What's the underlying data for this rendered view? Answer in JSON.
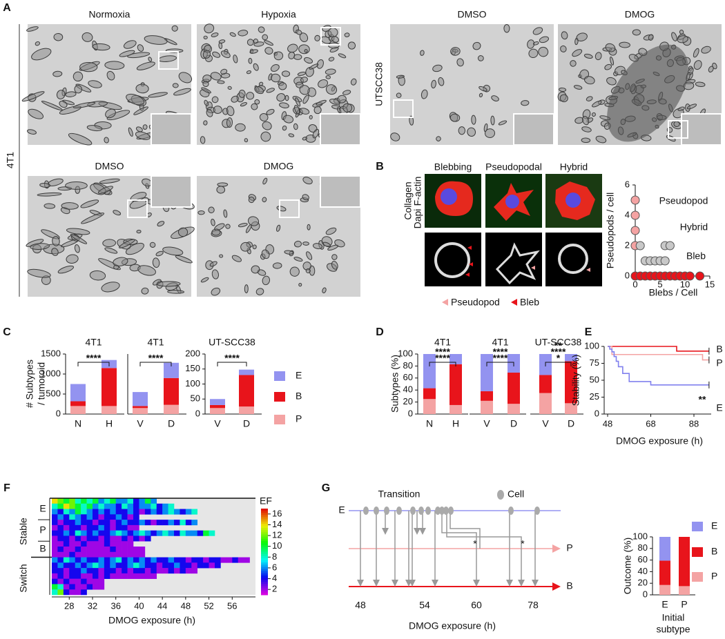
{
  "panel_labels": [
    "A",
    "B",
    "C",
    "D",
    "E",
    "F",
    "G"
  ],
  "panel_a": {
    "titles": [
      "Normoxia",
      "Hypoxia",
      "DMSO",
      "DMOG",
      "DMSO",
      "DMOG"
    ],
    "row_labels": [
      "4T1",
      "UTSCC38"
    ]
  },
  "panel_b": {
    "channel_labels": [
      "Collagen",
      "Dapi",
      "F-actin"
    ],
    "column_titles": [
      "Blebbing",
      "Pseudopodal",
      "Hybrid"
    ],
    "legend": [
      "Pseudopod",
      "Bleb"
    ]
  },
  "panel_g": {
    "title": "Transition",
    "legend": "Cell",
    "lanes": [
      "E",
      "P",
      "B"
    ],
    "xtick_labels": [
      "48",
      "54",
      "60",
      "78"
    ],
    "xlabel": "DMOG exposure (h)",
    "stars": [
      "*",
      "*"
    ]
  },
  "chart_data": [
    {
      "type": "scatter",
      "xlabel": "Blebs / Cell",
      "ylabel": "Pseudopods / cell",
      "xlim": [
        0,
        15
      ],
      "ylim": [
        0,
        6
      ],
      "xticks": [
        0,
        5,
        10,
        15
      ],
      "yticks": [
        0,
        2,
        4,
        6
      ],
      "series": [
        {
          "name": "Pseudopod",
          "color": "#f4a3a3",
          "x": [
            0,
            0,
            0,
            0
          ],
          "values": [
            2,
            3,
            4,
            5
          ]
        },
        {
          "name": "Hybrid",
          "color": "#c8c8c8",
          "x": [
            1,
            2,
            3,
            4,
            5,
            6,
            6,
            7
          ],
          "values": [
            2,
            1,
            1,
            1,
            1,
            1,
            2,
            2
          ]
        },
        {
          "name": "Bleb",
          "color": "#e8141b",
          "x": [
            0,
            1,
            2,
            3,
            4,
            5,
            6,
            7,
            8,
            9,
            10,
            11,
            13
          ],
          "values": [
            0,
            0,
            0,
            0,
            0,
            0,
            0,
            0,
            0,
            0,
            0,
            0,
            0
          ]
        }
      ]
    },
    {
      "type": "stacked_bar",
      "title": "4T1",
      "ylabel": [
        "# Subtypes",
        "/ tumoroid"
      ],
      "categories": [
        "N",
        "H"
      ],
      "ylim": [
        0,
        1500
      ],
      "yticks": [
        0,
        500,
        1000,
        1500
      ],
      "series": [
        {
          "name": "E",
          "color": "#9393f0",
          "values": [
            430,
            200
          ]
        },
        {
          "name": "B",
          "color": "#e8141b",
          "values": [
            120,
            950
          ]
        },
        {
          "name": "P",
          "color": "#f4a3a3",
          "values": [
            200,
            200
          ]
        }
      ],
      "significance": [
        {
          "text": "****",
          "color": "#e8141b"
        }
      ]
    },
    {
      "type": "stacked_bar",
      "title": "4T1",
      "categories": [
        "V",
        "D"
      ],
      "ylim": [
        0,
        1500
      ],
      "series": [
        {
          "name": "E",
          "color": "#9393f0",
          "values": [
            350,
            380
          ]
        },
        {
          "name": "B",
          "color": "#e8141b",
          "values": [
            50,
            670
          ]
        },
        {
          "name": "P",
          "color": "#f4a3a3",
          "values": [
            150,
            230
          ]
        }
      ],
      "significance": [
        {
          "text": "****",
          "color": "#e8141b"
        }
      ]
    },
    {
      "type": "stacked_bar",
      "title": "UT-SCC38",
      "categories": [
        "V",
        "D"
      ],
      "ylim": [
        0,
        200
      ],
      "yticks": [
        0,
        50,
        100,
        150,
        200
      ],
      "series": [
        {
          "name": "E",
          "color": "#9393f0",
          "values": [
            20,
            18
          ]
        },
        {
          "name": "B",
          "color": "#e8141b",
          "values": [
            10,
            105
          ]
        },
        {
          "name": "P",
          "color": "#f4a3a3",
          "values": [
            20,
            25
          ]
        }
      ],
      "significance": [
        {
          "text": "****",
          "color": "#e8141b"
        }
      ]
    },
    {
      "type": "stacked_bar",
      "title": "4T1",
      "ylabel": [
        "Subtypes (%)"
      ],
      "categories": [
        "N",
        "H"
      ],
      "ylim": [
        0,
        100
      ],
      "yticks": [
        0,
        20,
        40,
        60,
        80,
        100
      ],
      "series": [
        {
          "name": "E",
          "color": "#9393f0",
          "values": [
            57,
            17
          ]
        },
        {
          "name": "B",
          "color": "#e8141b",
          "values": [
            18,
            68
          ]
        },
        {
          "name": "P",
          "color": "#f4a3a3",
          "values": [
            25,
            15
          ]
        }
      ],
      "significance": [
        {
          "text": "****",
          "color": "#9393f0"
        },
        {
          "text": "****",
          "color": "#e8141b"
        }
      ]
    },
    {
      "type": "stacked_bar",
      "title": "4T1",
      "categories": [
        "V",
        "D"
      ],
      "ylim": [
        0,
        100
      ],
      "series": [
        {
          "name": "E",
          "color": "#9393f0",
          "values": [
            62,
            31
          ]
        },
        {
          "name": "B",
          "color": "#e8141b",
          "values": [
            16,
            52
          ]
        },
        {
          "name": "P",
          "color": "#f4a3a3",
          "values": [
            22,
            17
          ]
        }
      ],
      "significance": [
        {
          "text": "****",
          "color": "#9393f0"
        },
        {
          "text": "****",
          "color": "#e8141b"
        }
      ]
    },
    {
      "type": "stacked_bar",
      "title": "UT-SCC38",
      "categories": [
        "V",
        "D"
      ],
      "ylim": [
        0,
        100
      ],
      "series": [
        {
          "name": "E",
          "color": "#9393f0",
          "values": [
            35,
            12
          ]
        },
        {
          "name": "B",
          "color": "#e8141b",
          "values": [
            30,
            70
          ]
        },
        {
          "name": "P",
          "color": "#f4a3a3",
          "values": [
            35,
            18
          ]
        }
      ],
      "significance": [
        {
          "text": "**",
          "color": "#9393f0"
        },
        {
          "text": "****",
          "color": "#e8141b"
        },
        {
          "text": "*",
          "color": "#f4a3a3"
        }
      ]
    },
    {
      "type": "line",
      "xlabel": "DMOG exposure (h)",
      "ylabel": "Stability (%)",
      "xlim": [
        48,
        96
      ],
      "ylim": [
        0,
        100
      ],
      "xticks": [
        48,
        68,
        88
      ],
      "yticks": [
        0,
        25,
        50,
        75,
        100
      ],
      "annotation": "**",
      "series": [
        {
          "name": "B",
          "color": "#e8141b",
          "x": [
            48,
            80,
            80,
            95
          ],
          "values": [
            100,
            100,
            93,
            93
          ]
        },
        {
          "name": "P",
          "color": "#f4a3a3",
          "x": [
            48,
            50,
            50,
            92,
            92,
            95
          ],
          "values": [
            100,
            100,
            88,
            88,
            80,
            80
          ]
        },
        {
          "name": "E",
          "color": "#8080ee",
          "x": [
            48,
            49,
            49,
            50,
            50,
            51,
            51,
            52,
            52,
            53,
            53,
            55,
            55,
            58,
            58,
            68,
            68,
            95
          ],
          "values": [
            100,
            100,
            96,
            96,
            92,
            92,
            85,
            85,
            78,
            78,
            70,
            70,
            60,
            60,
            48,
            48,
            43,
            43
          ]
        }
      ]
    },
    {
      "type": "heatmap",
      "xlabel": "DMOG exposure (h)",
      "xlim": [
        25,
        60
      ],
      "xticks": [
        28,
        32,
        36,
        40,
        44,
        48,
        52,
        56
      ],
      "row_group_labels": [
        "Stable",
        "Switch"
      ],
      "subgroup_labels": [
        "E",
        "P",
        "B"
      ],
      "colorbar": {
        "label": "EF",
        "lim": [
          1,
          17
        ],
        "ticks": [
          2,
          4,
          6,
          8,
          10,
          12,
          14,
          16
        ]
      },
      "rows": [
        [
          14,
          12,
          10,
          12,
          8,
          10,
          8,
          10,
          6,
          8,
          10,
          6,
          6,
          8,
          4,
          6,
          10,
          6
        ],
        [
          8,
          10,
          14,
          12,
          10,
          8,
          10,
          6,
          8,
          6,
          6,
          4,
          8,
          6,
          4,
          6,
          6,
          8,
          4,
          6,
          8
        ],
        [
          6,
          4,
          8,
          6,
          10,
          8,
          6,
          4,
          6,
          4,
          6,
          4,
          4,
          6,
          4,
          2,
          4,
          6,
          4,
          6,
          8,
          6,
          4,
          6,
          8
        ],
        [
          4,
          6,
          4,
          8,
          6,
          4,
          6,
          4,
          2,
          4,
          4,
          6,
          4,
          2,
          4
        ],
        [
          4,
          2,
          4,
          4,
          6,
          4,
          4,
          2,
          4,
          4,
          2,
          4,
          6,
          4,
          4,
          6,
          4,
          2,
          4,
          4,
          6,
          4,
          8,
          4,
          6
        ],
        [
          2,
          4,
          2,
          4,
          4,
          2,
          4,
          4,
          6,
          4,
          2,
          4,
          4,
          2,
          2
        ],
        [
          4,
          4,
          6,
          4,
          8,
          6,
          4,
          6,
          4,
          4,
          6,
          8,
          6,
          4,
          6,
          8,
          6,
          4,
          6,
          8,
          6,
          4,
          8,
          6,
          6,
          4,
          10,
          8
        ],
        [
          2,
          4,
          4,
          2,
          4,
          2,
          4,
          4,
          2,
          4,
          2,
          2,
          4,
          2,
          4,
          2,
          4
        ],
        [
          2,
          2,
          4,
          2,
          2,
          4,
          2,
          2,
          2,
          4,
          2,
          2,
          2,
          2
        ],
        [
          2,
          4,
          2,
          2,
          4,
          2,
          2,
          2,
          2,
          2,
          4,
          2,
          2,
          2,
          2,
          2
        ],
        [
          2,
          2,
          2,
          4,
          2,
          2,
          2,
          2,
          2,
          2,
          2,
          2,
          2,
          2,
          2,
          2
        ],
        [
          6,
          4,
          8,
          6,
          4,
          6,
          4,
          4,
          6,
          4,
          6,
          8,
          4,
          6,
          4,
          6,
          4,
          6,
          4,
          4,
          6,
          4,
          4,
          2,
          4,
          4,
          2,
          4,
          4,
          2,
          2,
          4,
          2,
          2
        ],
        [
          4,
          6,
          4,
          4,
          6,
          4,
          6,
          8,
          6,
          4,
          6,
          4,
          4,
          6,
          8,
          6,
          4,
          4,
          2,
          4,
          4,
          6,
          4,
          4,
          2,
          4,
          4,
          2,
          4
        ],
        [
          4,
          4,
          2,
          4,
          4,
          6,
          4,
          4,
          2,
          4,
          4,
          2,
          4,
          2,
          4,
          4,
          2,
          4,
          2,
          2,
          4,
          2,
          4,
          2,
          2
        ],
        [
          2,
          4,
          2,
          4,
          4,
          2,
          2,
          4,
          2,
          4,
          2,
          2,
          2,
          2,
          2,
          2,
          2,
          2
        ],
        [
          4,
          2,
          4,
          2,
          2,
          4,
          2,
          2,
          2
        ],
        [
          10,
          8,
          2,
          4,
          2,
          2,
          4,
          2,
          2
        ],
        [
          8,
          12,
          4,
          2,
          2,
          4
        ]
      ]
    },
    {
      "type": "stacked_bar",
      "ylabel": [
        "Outcome (%)"
      ],
      "xlabel": [
        "Initial",
        "subtype"
      ],
      "categories": [
        "E",
        "P"
      ],
      "ylim": [
        0,
        100
      ],
      "yticks": [
        0,
        20,
        40,
        60,
        80,
        100
      ],
      "series": [
        {
          "name": "E",
          "color": "#9393f0",
          "values": [
            41,
            0
          ]
        },
        {
          "name": "B",
          "color": "#e8141b",
          "values": [
            42,
            85
          ]
        },
        {
          "name": "P",
          "color": "#f4a3a3",
          "values": [
            17,
            15
          ]
        }
      ]
    }
  ]
}
